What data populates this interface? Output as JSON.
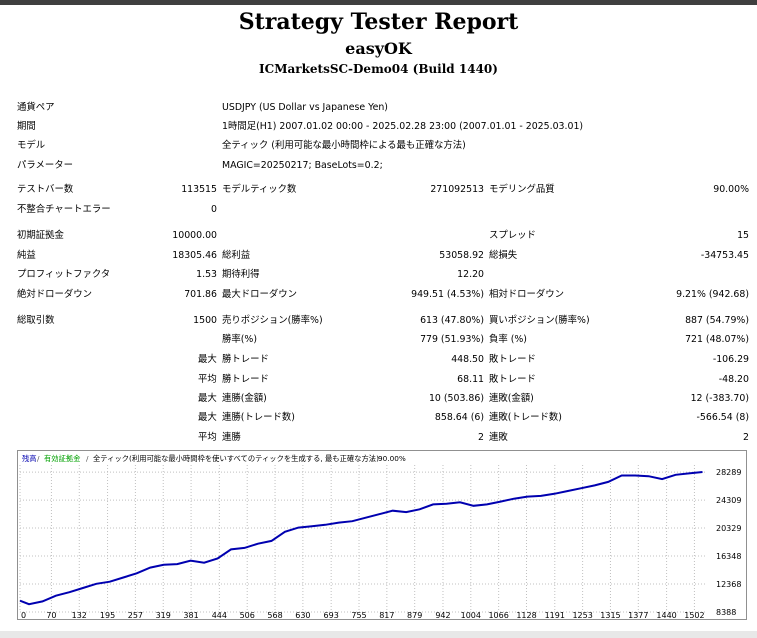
{
  "report": {
    "title": "Strategy Tester Report",
    "expert": "easyOK",
    "server": "ICMarketsSC-Demo04 (Build 1440)"
  },
  "settings": {
    "symbol_label": "通貨ペア",
    "symbol_value": "USDJPY (US Dollar vs Japanese Yen)",
    "period_label": "期間",
    "period_value": "1時間足(H1) 2007.01.02 00:00 - 2025.02.28 23:00 (2007.01.01 - 2025.03.01)",
    "model_label": "モデル",
    "model_value": "全ティック (利用可能な最小時間枠による最も正確な方法)",
    "params_label": "パラメーター",
    "params_value": "MAGIC=20250217; BaseLots=0.2;"
  },
  "stats": {
    "bars_label": "テストバー数",
    "bars_value": "113515",
    "ticks_label": "モデルティック数",
    "ticks_value": "271092513",
    "quality_label": "モデリング品質",
    "quality_value": "90.00%",
    "mismatch_label": "不整合チャートエラー",
    "mismatch_value": "0",
    "deposit_label": "初期証拠金",
    "deposit_value": "10000.00",
    "spread_label": "スプレッド",
    "spread_value": "15",
    "netprofit_label": "純益",
    "netprofit_value": "18305.46",
    "grossprofit_label": "総利益",
    "grossprofit_value": "53058.92",
    "grossloss_label": "総損失",
    "grossloss_value": "-34753.45",
    "pf_label": "プロフィットファクタ",
    "pf_value": "1.53",
    "expected_label": "期待利得",
    "expected_value": "12.20",
    "absdd_label": "絶対ドローダウン",
    "absdd_value": "701.86",
    "maxdd_label": "最大ドローダウン",
    "maxdd_value": "949.51 (4.53%)",
    "reldd_label": "相対ドローダウン",
    "reldd_value": "9.21% (942.68)",
    "trades_label": "総取引数",
    "trades_value": "1500",
    "short_label": "売りポジション(勝率%)",
    "short_value": "613 (47.80%)",
    "long_label": "買いポジション(勝率%)",
    "long_value": "887 (54.79%)",
    "winpct_label": "勝率(%)",
    "winpct_value": "779 (51.93%)",
    "losspct_label": "負率 (%)",
    "losspct_value": "721 (48.07%)",
    "max_word": "最大",
    "avg_word": "平均",
    "largest_win_label": "勝トレード",
    "largest_win_value": "448.50",
    "largest_loss_label": "敗トレード",
    "largest_loss_value": "-106.29",
    "avg_win_label": "勝トレード",
    "avg_win_value": "68.11",
    "avg_loss_label": "敗トレード",
    "avg_loss_value": "-48.20",
    "max_consec_win_label": "連勝(金額)",
    "max_consec_win_value": "10 (503.86)",
    "max_consec_loss_label": "連敗(金額)",
    "max_consec_loss_value": "12 (-383.70)",
    "max_consec_profit_label": "連勝(トレード数)",
    "max_consec_profit_value": "858.64 (6)",
    "max_consec_lossamt_label": "連敗(トレード数)",
    "max_consec_lossamt_value": "-566.54 (8)",
    "avg_consec_win_label": "連勝",
    "avg_consec_win_value": "2",
    "avg_consec_loss_label": "連敗",
    "avg_consec_loss_value": "2"
  },
  "chart_data": {
    "type": "line",
    "legend": {
      "balance": "残高",
      "equity": "有効証拠金",
      "model": "全ティック(利用可能な最小時間枠を使いすべてのティックを生成する, 最も正確な方法)",
      "quality": "90.00%"
    },
    "colors": {
      "balance": "#0000b0",
      "equity": "#00a000",
      "grid": "#c0c0c0"
    },
    "y_ticks": [
      8388,
      12368,
      16348,
      20329,
      24309,
      28289
    ],
    "x_ticks": [
      0,
      70,
      132,
      195,
      257,
      319,
      381,
      444,
      506,
      568,
      630,
      693,
      755,
      817,
      879,
      942,
      1004,
      1066,
      1128,
      1191,
      1253,
      1315,
      1377,
      1440,
      1502
    ],
    "ylim": [
      8388,
      29300
    ],
    "xlim": [
      0,
      1530
    ],
    "series": [
      {
        "x": [
          0,
          20,
          50,
          80,
          110,
          140,
          170,
          200,
          230,
          260,
          290,
          320,
          350,
          380,
          410,
          440,
          470,
          500,
          530,
          560,
          590,
          620,
          650,
          680,
          710,
          740,
          770,
          800,
          830,
          860,
          890,
          920,
          950,
          980,
          1010,
          1040,
          1070,
          1100,
          1130,
          1160,
          1190,
          1220,
          1250,
          1280,
          1310,
          1340,
          1370,
          1400,
          1430,
          1460,
          1490,
          1520
        ],
        "y": [
          10000,
          9500,
          9900,
          10700,
          11200,
          11800,
          12400,
          12700,
          13300,
          13900,
          14700,
          15100,
          15200,
          15700,
          15400,
          16000,
          17300,
          17500,
          18100,
          18500,
          19800,
          20400,
          20600,
          20800,
          21100,
          21300,
          21800,
          22300,
          22800,
          22600,
          23000,
          23700,
          23800,
          24000,
          23500,
          23700,
          24100,
          24500,
          24800,
          24900,
          25200,
          25600,
          26000,
          26400,
          26900,
          27800,
          27800,
          27700,
          27300,
          27900,
          28100,
          28300
        ]
      }
    ]
  }
}
